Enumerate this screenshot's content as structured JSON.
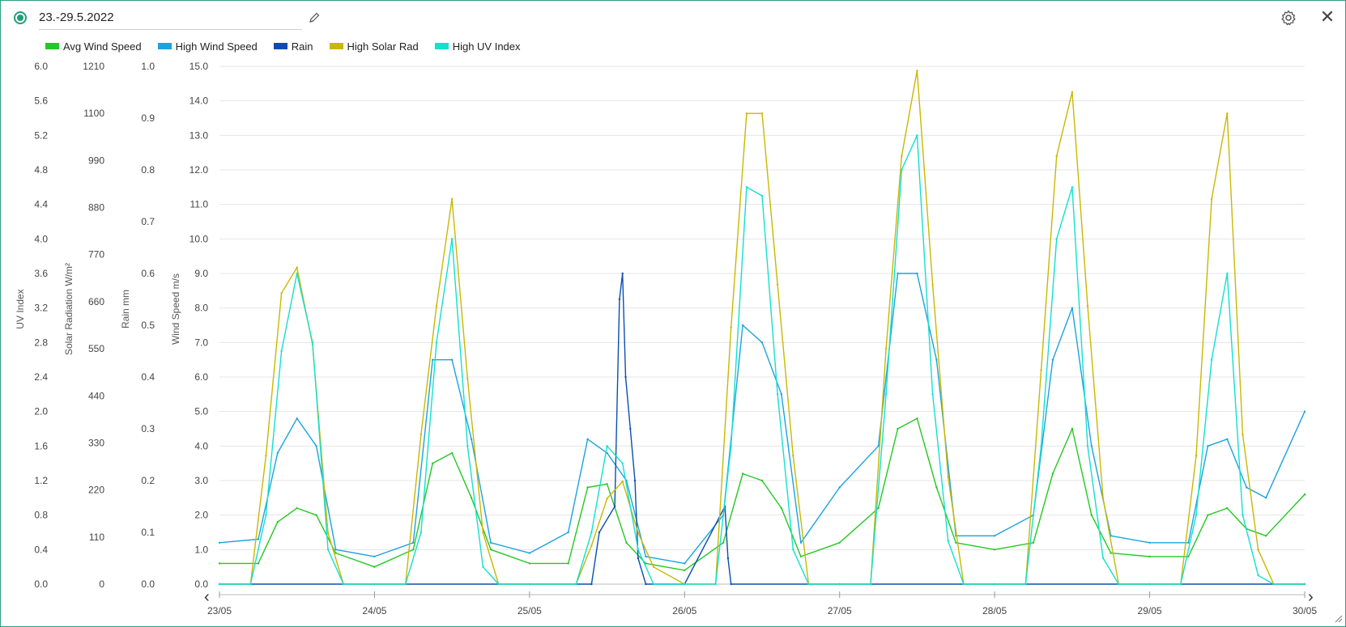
{
  "window": {
    "title": "23.-29.5.2022"
  },
  "icons": {
    "edit": "pencil-icon",
    "settings": "gear-icon",
    "close": "close-icon",
    "prev": "chevron-left-icon",
    "next": "chevron-right-icon"
  },
  "nav": {
    "prev_label": "‹",
    "next_label": "›",
    "close_label": "✕"
  },
  "chart_data": {
    "type": "line",
    "legend_placement": "top-left",
    "grid": true,
    "x": {
      "ticks": [
        "23/05",
        "24/05",
        "25/05",
        "26/05",
        "27/05",
        "28/05",
        "29/05",
        "30/05"
      ],
      "range_days": [
        0,
        7
      ]
    },
    "axes": [
      {
        "id": "uv",
        "title": "UV Index",
        "range": [
          0,
          6.0
        ],
        "ticks": [
          "6.0",
          "5.6",
          "5.2",
          "4.8",
          "4.4",
          "4.0",
          "3.6",
          "3.2",
          "2.8",
          "2.4",
          "2.0",
          "1.6",
          "1.2",
          "0.8",
          "0.4",
          "0.0"
        ]
      },
      {
        "id": "solar",
        "title": "Solar Radiation W/m²",
        "range": [
          0,
          1210
        ],
        "ticks": [
          "1210",
          "1100",
          "990",
          "880",
          "770",
          "660",
          "550",
          "440",
          "330",
          "220",
          "110",
          "0"
        ]
      },
      {
        "id": "rain",
        "title": "Rain mm",
        "range": [
          0,
          1.0
        ],
        "ticks": [
          "1.0",
          "0.9",
          "0.8",
          "0.7",
          "0.6",
          "0.5",
          "0.4",
          "0.3",
          "0.2",
          "0.1",
          "0.0"
        ]
      },
      {
        "id": "wind",
        "title": "Wind Speed m/s",
        "range": [
          0,
          15.0
        ],
        "ticks": [
          "15.0",
          "14.0",
          "13.0",
          "12.0",
          "11.0",
          "10.0",
          "9.0",
          "8.0",
          "7.0",
          "6.0",
          "5.0",
          "4.0",
          "3.0",
          "2.0",
          "1.0",
          "0.0"
        ]
      }
    ],
    "series": [
      {
        "name": "Avg Wind Speed",
        "color": "#22c922",
        "axis": "wind",
        "x": [
          0,
          0.25,
          0.375,
          0.5,
          0.625,
          0.75,
          1,
          1.25,
          1.375,
          1.5,
          1.625,
          1.75,
          2,
          2.25,
          2.375,
          2.5,
          2.625,
          2.75,
          3,
          3.25,
          3.375,
          3.5,
          3.625,
          3.75,
          4,
          4.25,
          4.375,
          4.5,
          4.625,
          4.75,
          5,
          5.25,
          5.375,
          5.5,
          5.625,
          5.75,
          6,
          6.25,
          6.375,
          6.5,
          6.625,
          6.75,
          7
        ],
        "values": [
          0.6,
          0.6,
          1.8,
          2.2,
          2.0,
          0.9,
          0.5,
          1.0,
          3.5,
          3.8,
          2.5,
          1.0,
          0.6,
          0.6,
          2.8,
          2.9,
          1.2,
          0.6,
          0.4,
          1.2,
          3.2,
          3.0,
          2.2,
          0.8,
          1.2,
          2.2,
          4.5,
          4.8,
          2.8,
          1.2,
          1.0,
          1.2,
          3.2,
          4.5,
          2.0,
          0.9,
          0.8,
          0.8,
          2.0,
          2.2,
          1.6,
          1.4,
          2.6
        ]
      },
      {
        "name": "High Wind Speed",
        "color": "#1aa3e0",
        "axis": "wind",
        "x": [
          0,
          0.25,
          0.375,
          0.5,
          0.625,
          0.75,
          1,
          1.25,
          1.375,
          1.5,
          1.625,
          1.75,
          2,
          2.25,
          2.375,
          2.5,
          2.625,
          2.75,
          3,
          3.25,
          3.375,
          3.5,
          3.625,
          3.75,
          4,
          4.25,
          4.375,
          4.5,
          4.625,
          4.75,
          5,
          5.25,
          5.375,
          5.5,
          5.625,
          5.75,
          6,
          6.25,
          6.375,
          6.5,
          6.625,
          6.75,
          7
        ],
        "values": [
          1.2,
          1.3,
          3.8,
          4.8,
          4.0,
          1.0,
          0.8,
          1.2,
          6.5,
          6.5,
          4.2,
          1.2,
          0.9,
          1.5,
          4.2,
          3.8,
          3.0,
          0.8,
          0.6,
          2.0,
          7.5,
          7.0,
          5.5,
          1.2,
          2.8,
          4.0,
          9.0,
          9.0,
          6.5,
          1.4,
          1.4,
          2.0,
          6.5,
          8.0,
          4.0,
          1.4,
          1.2,
          1.2,
          4.0,
          4.2,
          2.8,
          2.5,
          5.0
        ]
      },
      {
        "name": "Rain",
        "color": "#0a4fb0",
        "axis": "rain",
        "x": [
          0,
          2.4,
          2.45,
          2.55,
          2.58,
          2.6,
          2.62,
          2.65,
          2.68,
          2.7,
          2.75,
          2.8,
          3.0,
          3.26,
          3.28,
          3.3,
          4.0,
          7
        ],
        "values": [
          0,
          0,
          0.1,
          0.15,
          0.55,
          0.6,
          0.4,
          0.3,
          0.2,
          0.05,
          0,
          0,
          0,
          0.15,
          0.05,
          0,
          0,
          0
        ]
      },
      {
        "name": "High Solar Rad",
        "color": "#c8b800",
        "axis": "solar",
        "x": [
          0,
          0.2,
          0.3,
          0.4,
          0.5,
          0.6,
          0.7,
          0.8,
          1.0,
          1.2,
          1.3,
          1.4,
          1.5,
          1.6,
          1.7,
          1.8,
          2.0,
          2.3,
          2.4,
          2.5,
          2.6,
          2.7,
          2.8,
          3.0,
          3.2,
          3.3,
          3.4,
          3.5,
          3.6,
          3.7,
          3.8,
          4.0,
          4.2,
          4.3,
          4.4,
          4.5,
          4.6,
          4.7,
          4.8,
          5.0,
          5.2,
          5.3,
          5.4,
          5.5,
          5.6,
          5.7,
          5.8,
          6.0,
          6.2,
          6.3,
          6.4,
          6.5,
          6.6,
          6.7,
          6.8,
          7
        ],
        "values": [
          0,
          0,
          300,
          680,
          740,
          560,
          120,
          0,
          0,
          0,
          350,
          650,
          900,
          480,
          120,
          0,
          0,
          0,
          90,
          200,
          240,
          120,
          40,
          0,
          0,
          600,
          1100,
          1100,
          700,
          300,
          0,
          0,
          0,
          550,
          1000,
          1200,
          700,
          250,
          0,
          0,
          0,
          500,
          1000,
          1150,
          650,
          200,
          0,
          0,
          0,
          300,
          900,
          1100,
          350,
          80,
          0,
          0
        ]
      },
      {
        "name": "High UV Index",
        "color": "#12e0d0",
        "axis": "uv",
        "x": [
          0,
          0.2,
          0.3,
          0.4,
          0.5,
          0.6,
          0.7,
          0.8,
          1.0,
          1.2,
          1.3,
          1.4,
          1.5,
          1.6,
          1.7,
          1.8,
          2.0,
          2.3,
          2.4,
          2.5,
          2.6,
          2.7,
          2.8,
          3.0,
          3.2,
          3.3,
          3.4,
          3.5,
          3.6,
          3.7,
          3.8,
          4.0,
          4.2,
          4.3,
          4.4,
          4.5,
          4.6,
          4.7,
          4.8,
          5.0,
          5.2,
          5.3,
          5.4,
          5.5,
          5.6,
          5.7,
          5.8,
          6.0,
          6.2,
          6.3,
          6.4,
          6.5,
          6.6,
          6.7,
          6.8,
          7
        ],
        "values": [
          0,
          0,
          0.8,
          2.7,
          3.6,
          2.8,
          0.4,
          0,
          0,
          0,
          0.6,
          2.8,
          4.0,
          1.6,
          0.2,
          0,
          0,
          0,
          0.6,
          1.6,
          1.4,
          0.4,
          0,
          0,
          0,
          1.6,
          4.6,
          4.5,
          2.2,
          0.4,
          0,
          0,
          0,
          2.2,
          4.8,
          5.2,
          2.2,
          0.5,
          0,
          0,
          0,
          1.6,
          4.0,
          4.6,
          1.6,
          0.3,
          0,
          0,
          0,
          0.8,
          2.6,
          3.6,
          0.8,
          0.1,
          0,
          0
        ]
      }
    ]
  }
}
